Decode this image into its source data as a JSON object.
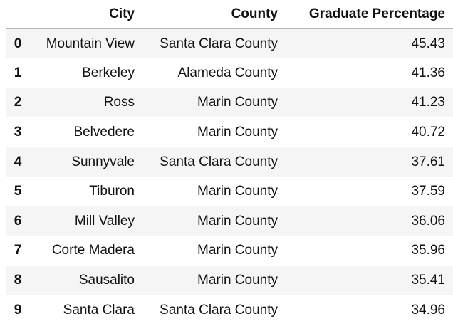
{
  "table": {
    "columns": [
      "",
      "City",
      "County",
      "Graduate Percentage"
    ],
    "rows": [
      {
        "index": "0",
        "city": "Mountain View",
        "county": "Santa Clara County",
        "graduate_percentage": "45.43"
      },
      {
        "index": "1",
        "city": "Berkeley",
        "county": "Alameda County",
        "graduate_percentage": "41.36"
      },
      {
        "index": "2",
        "city": "Ross",
        "county": "Marin County",
        "graduate_percentage": "41.23"
      },
      {
        "index": "3",
        "city": "Belvedere",
        "county": "Marin County",
        "graduate_percentage": "40.72"
      },
      {
        "index": "4",
        "city": "Sunnyvale",
        "county": "Santa Clara County",
        "graduate_percentage": "37.61"
      },
      {
        "index": "5",
        "city": "Tiburon",
        "county": "Marin County",
        "graduate_percentage": "37.59"
      },
      {
        "index": "6",
        "city": "Mill Valley",
        "county": "Marin County",
        "graduate_percentage": "36.06"
      },
      {
        "index": "7",
        "city": "Corte Madera",
        "county": "Marin County",
        "graduate_percentage": "35.96"
      },
      {
        "index": "8",
        "city": "Sausalito",
        "county": "Marin County",
        "graduate_percentage": "35.41"
      },
      {
        "index": "9",
        "city": "Santa Clara",
        "county": "Santa Clara County",
        "graduate_percentage": "34.96"
      }
    ]
  },
  "colors": {
    "stripe": "#f5f5f5",
    "header_rule": "#b5b5b5",
    "text": "#111111"
  }
}
